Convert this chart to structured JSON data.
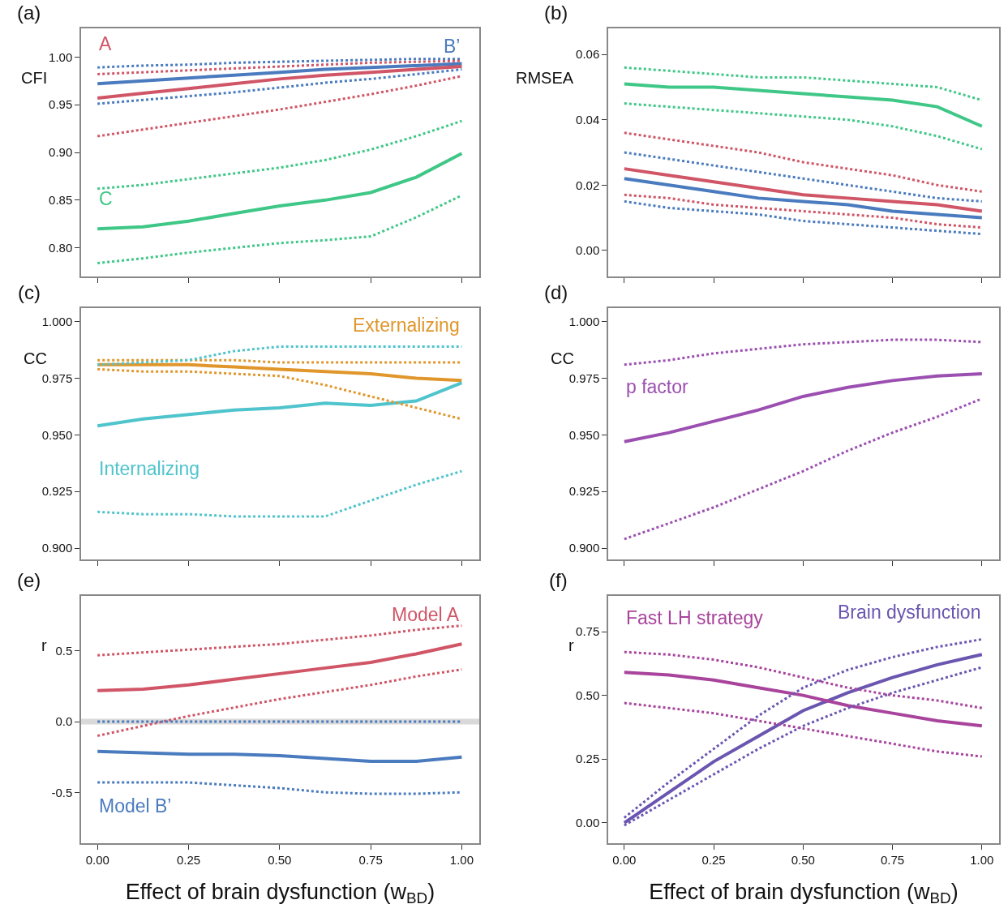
{
  "chart_data": [
    {
      "type": "line",
      "title": "(a)",
      "ylabel": "CFI",
      "x": [
        0,
        0.125,
        0.25,
        0.375,
        0.5,
        0.625,
        0.75,
        0.875,
        1
      ],
      "xlim": [
        -0.045,
        1.048
      ],
      "xticks": [
        0,
        0.25,
        0.5,
        0.75,
        1
      ],
      "ylim": [
        0.77,
        1.03
      ],
      "yticks": [
        {
          "value": 0.8,
          "label": "0.80"
        },
        {
          "value": 0.85,
          "label": "0.85"
        },
        {
          "value": 0.9,
          "label": "0.90"
        },
        {
          "value": 0.95,
          "label": "0.95"
        },
        {
          "value": 1.0,
          "label": "1.00"
        }
      ],
      "tick_labels": "y",
      "line_style": "solid",
      "series": [
        {
          "name": "B’",
          "color": "#4a7bbf",
          "values": [
            0.972,
            0.975,
            0.978,
            0.981,
            0.984,
            0.987,
            0.989,
            0.991,
            0.993
          ]
        },
        {
          "color": "#4a7bbf",
          "line_style": "dotted",
          "values": [
            0.989,
            0.991,
            0.992,
            0.994,
            0.995,
            0.996,
            0.997,
            0.998,
            0.998
          ]
        },
        {
          "color": "#4a7bbf",
          "line_style": "dotted",
          "values": [
            0.951,
            0.955,
            0.959,
            0.963,
            0.968,
            0.973,
            0.977,
            0.982,
            0.987
          ]
        },
        {
          "name": "A",
          "color": "#d05566",
          "values": [
            0.957,
            0.962,
            0.967,
            0.972,
            0.977,
            0.981,
            0.984,
            0.987,
            0.99
          ]
        },
        {
          "color": "#d05566",
          "line_style": "dotted",
          "values": [
            0.982,
            0.984,
            0.986,
            0.988,
            0.99,
            0.992,
            0.994,
            0.995,
            0.996
          ]
        },
        {
          "color": "#d05566",
          "line_style": "dotted",
          "values": [
            0.917,
            0.924,
            0.931,
            0.938,
            0.945,
            0.953,
            0.961,
            0.97,
            0.98
          ]
        },
        {
          "name": "C",
          "color": "#3fc787",
          "values": [
            0.82,
            0.822,
            0.828,
            0.836,
            0.844,
            0.85,
            0.858,
            0.874,
            0.899
          ]
        },
        {
          "color": "#3fc787",
          "line_style": "dotted",
          "values": [
            0.862,
            0.866,
            0.872,
            0.878,
            0.884,
            0.892,
            0.903,
            0.917,
            0.933
          ]
        },
        {
          "color": "#3fc787",
          "line_style": "dotted",
          "values": [
            0.784,
            0.789,
            0.795,
            0.8,
            0.805,
            0.808,
            0.812,
            0.832,
            0.855
          ]
        }
      ]
    },
    {
      "type": "line",
      "title": "(b)",
      "ylabel": "RMSEA",
      "x": [
        0,
        0.125,
        0.25,
        0.375,
        0.5,
        0.625,
        0.75,
        0.875,
        1
      ],
      "xlim": [
        -0.045,
        1.048
      ],
      "xticks": [
        0,
        0.25,
        0.5,
        0.75,
        1
      ],
      "ylim": [
        -0.008,
        0.068
      ],
      "yticks": [
        {
          "value": 0,
          "label": "0.00"
        },
        {
          "value": 0.02,
          "label": "0.02"
        },
        {
          "value": 0.04,
          "label": "0.04"
        },
        {
          "value": 0.06,
          "label": "0.06"
        }
      ],
      "tick_labels": "y",
      "line_style": "solid",
      "series": [
        {
          "color": "#3fc787",
          "values": [
            0.051,
            0.05,
            0.05,
            0.049,
            0.048,
            0.047,
            0.046,
            0.044,
            0.038
          ]
        },
        {
          "color": "#3fc787",
          "line_style": "dotted",
          "values": [
            0.056,
            0.055,
            0.054,
            0.053,
            0.053,
            0.052,
            0.051,
            0.05,
            0.046
          ]
        },
        {
          "color": "#3fc787",
          "line_style": "dotted",
          "values": [
            0.045,
            0.044,
            0.043,
            0.042,
            0.041,
            0.04,
            0.038,
            0.035,
            0.031
          ]
        },
        {
          "color": "#d05566",
          "values": [
            0.025,
            0.023,
            0.021,
            0.019,
            0.017,
            0.016,
            0.015,
            0.014,
            0.012
          ]
        },
        {
          "color": "#d05566",
          "line_style": "dotted",
          "values": [
            0.036,
            0.034,
            0.032,
            0.03,
            0.027,
            0.025,
            0.023,
            0.02,
            0.018
          ]
        },
        {
          "color": "#d05566",
          "line_style": "dotted",
          "values": [
            0.017,
            0.016,
            0.014,
            0.013,
            0.012,
            0.011,
            0.01,
            0.008,
            0.007
          ]
        },
        {
          "color": "#4a7bbf",
          "values": [
            0.022,
            0.02,
            0.018,
            0.016,
            0.015,
            0.014,
            0.012,
            0.011,
            0.01
          ]
        },
        {
          "color": "#4a7bbf",
          "line_style": "dotted",
          "values": [
            0.03,
            0.028,
            0.026,
            0.024,
            0.022,
            0.02,
            0.018,
            0.016,
            0.015
          ]
        },
        {
          "color": "#4a7bbf",
          "line_style": "dotted",
          "values": [
            0.015,
            0.013,
            0.012,
            0.011,
            0.009,
            0.008,
            0.007,
            0.006,
            0.005
          ]
        }
      ]
    },
    {
      "type": "line",
      "title": "(c)",
      "ylabel": "CC",
      "x": [
        0,
        0.125,
        0.25,
        0.375,
        0.5,
        0.625,
        0.75,
        0.875,
        1
      ],
      "xlim": [
        -0.045,
        1.048
      ],
      "xticks": [
        0,
        0.25,
        0.5,
        0.75,
        1
      ],
      "ylim": [
        0.895,
        1.006
      ],
      "yticks": [
        {
          "value": 0.9,
          "label": "0.900"
        },
        {
          "value": 0.925,
          "label": "0.925"
        },
        {
          "value": 0.95,
          "label": "0.950"
        },
        {
          "value": 0.975,
          "label": "0.975"
        },
        {
          "value": 1.0,
          "label": "1.000"
        }
      ],
      "tick_labels": "y",
      "line_style": "solid",
      "series": [
        {
          "name": "Externalizing",
          "color": "#e0962a",
          "values": [
            0.981,
            0.981,
            0.981,
            0.98,
            0.979,
            0.978,
            0.977,
            0.975,
            0.974
          ]
        },
        {
          "color": "#e0962a",
          "line_style": "dotted",
          "values": [
            0.983,
            0.983,
            0.983,
            0.983,
            0.982,
            0.982,
            0.982,
            0.982,
            0.982
          ]
        },
        {
          "color": "#e0962a",
          "line_style": "dotted",
          "values": [
            0.979,
            0.978,
            0.978,
            0.977,
            0.976,
            0.972,
            0.967,
            0.962,
            0.957
          ]
        },
        {
          "name": "Internalizing",
          "color": "#4fc4cc",
          "values": [
            0.954,
            0.957,
            0.959,
            0.961,
            0.962,
            0.964,
            0.963,
            0.965,
            0.973
          ]
        },
        {
          "color": "#4fc4cc",
          "line_style": "dotted",
          "values": [
            0.981,
            0.982,
            0.983,
            0.987,
            0.989,
            0.989,
            0.989,
            0.989,
            0.989
          ]
        },
        {
          "color": "#4fc4cc",
          "line_style": "dotted",
          "values": [
            0.916,
            0.915,
            0.915,
            0.914,
            0.914,
            0.914,
            0.921,
            0.928,
            0.934
          ]
        }
      ]
    },
    {
      "type": "line",
      "title": "(d)",
      "ylabel": "CC",
      "x": [
        0,
        0.125,
        0.25,
        0.375,
        0.5,
        0.625,
        0.75,
        0.875,
        1
      ],
      "xlim": [
        -0.045,
        1.048
      ],
      "xticks": [
        0,
        0.25,
        0.5,
        0.75,
        1
      ],
      "ylim": [
        0.895,
        1.006
      ],
      "yticks": [
        {
          "value": 0.9,
          "label": "0.900"
        },
        {
          "value": 0.925,
          "label": "0.925"
        },
        {
          "value": 0.95,
          "label": "0.950"
        },
        {
          "value": 0.975,
          "label": "0.975"
        },
        {
          "value": 1.0,
          "label": "1.000"
        }
      ],
      "tick_labels": "y",
      "line_style": "solid",
      "series": [
        {
          "name": "p factor",
          "color": "#9b4fb0",
          "values": [
            0.947,
            0.951,
            0.956,
            0.961,
            0.967,
            0.971,
            0.974,
            0.976,
            0.977
          ]
        },
        {
          "color": "#9b4fb0",
          "line_style": "dotted",
          "values": [
            0.981,
            0.983,
            0.986,
            0.988,
            0.99,
            0.991,
            0.992,
            0.992,
            0.991
          ]
        },
        {
          "color": "#9b4fb0",
          "line_style": "dotted",
          "values": [
            0.904,
            0.911,
            0.918,
            0.926,
            0.934,
            0.943,
            0.951,
            0.958,
            0.966
          ]
        }
      ]
    },
    {
      "type": "line",
      "title": "(e)",
      "ylabel": "r",
      "xlabel": "Effect of brain dysfunction (w$_{BD}$)",
      "x": [
        0,
        0.125,
        0.25,
        0.375,
        0.5,
        0.625,
        0.75,
        0.875,
        1
      ],
      "xlim": [
        -0.045,
        1.048
      ],
      "xticks": [
        {
          "value": 0,
          "label": "0.00"
        },
        {
          "value": 0.25,
          "label": "0.25"
        },
        {
          "value": 0.5,
          "label": "0.50"
        },
        {
          "value": 0.75,
          "label": "0.75"
        },
        {
          "value": 1,
          "label": "1.00"
        }
      ],
      "ylim": [
        -0.86,
        0.89
      ],
      "yticks": [
        {
          "value": -0.5,
          "label": "-0.5"
        },
        {
          "value": 0,
          "label": "0.0"
        },
        0.5
      ],
      "line_style": "solid",
      "ref_lines": [
        {
          "axis": "y",
          "value": 0,
          "color": "#d9d9d9"
        }
      ],
      "series": [
        {
          "name": "Model A",
          "color": "#d05566",
          "values": [
            0.22,
            0.23,
            0.26,
            0.3,
            0.34,
            0.38,
            0.42,
            0.48,
            0.55
          ]
        },
        {
          "color": "#d05566",
          "line_style": "dotted",
          "values": [
            0.47,
            0.49,
            0.51,
            0.53,
            0.55,
            0.58,
            0.61,
            0.65,
            0.68
          ]
        },
        {
          "color": "#d05566",
          "line_style": "dotted",
          "values": [
            -0.1,
            -0.03,
            0.04,
            0.1,
            0.16,
            0.21,
            0.26,
            0.32,
            0.37
          ]
        },
        {
          "name": "Model B’",
          "color": "#4a7bbf",
          "values": [
            -0.21,
            -0.22,
            -0.23,
            -0.23,
            -0.24,
            -0.26,
            -0.28,
            -0.28,
            -0.25
          ]
        },
        {
          "color": "#4a7bbf",
          "line_style": "dotted",
          "values": [
            0,
            0,
            0,
            0,
            0,
            0,
            0,
            0,
            0
          ]
        },
        {
          "color": "#4a7bbf",
          "line_style": "dotted",
          "values": [
            -0.43,
            -0.43,
            -0.43,
            -0.45,
            -0.47,
            -0.5,
            -0.51,
            -0.51,
            -0.5
          ]
        }
      ]
    },
    {
      "type": "line",
      "title": "(f)",
      "ylabel": "r",
      "xlabel": "Effect of brain dysfunction (w$_{BD}$)",
      "x": [
        0,
        0.125,
        0.25,
        0.375,
        0.5,
        0.625,
        0.75,
        0.875,
        1
      ],
      "xlim": [
        -0.045,
        1.048
      ],
      "xticks": [
        {
          "value": 0,
          "label": "0.00"
        },
        {
          "value": 0.25,
          "label": "0.25"
        },
        {
          "value": 0.5,
          "label": "0.50"
        },
        {
          "value": 0.75,
          "label": "0.75"
        },
        {
          "value": 1,
          "label": "1.00"
        }
      ],
      "ylim": [
        -0.08,
        0.89
      ],
      "yticks": [
        {
          "value": 0,
          "label": "0.00"
        },
        0.25,
        {
          "value": 0.5,
          "label": "0.50"
        },
        0.75
      ],
      "line_style": "solid",
      "series": [
        {
          "name": "Brain dysfunction",
          "color": "#6a55b0",
          "values": [
            0.0,
            0.12,
            0.24,
            0.34,
            0.44,
            0.51,
            0.57,
            0.62,
            0.66
          ]
        },
        {
          "color": "#6a55b0",
          "line_style": "dotted",
          "values": [
            0.02,
            0.16,
            0.29,
            0.42,
            0.53,
            0.6,
            0.65,
            0.69,
            0.72
          ]
        },
        {
          "color": "#6a55b0",
          "line_style": "dotted",
          "values": [
            -0.01,
            0.09,
            0.19,
            0.29,
            0.38,
            0.45,
            0.51,
            0.56,
            0.61
          ]
        },
        {
          "name": "Fast LH strategy",
          "color": "#a8449c",
          "values": [
            0.59,
            0.58,
            0.56,
            0.53,
            0.5,
            0.46,
            0.43,
            0.4,
            0.38
          ]
        },
        {
          "color": "#a8449c",
          "line_style": "dotted",
          "values": [
            0.67,
            0.66,
            0.64,
            0.61,
            0.57,
            0.53,
            0.5,
            0.48,
            0.45
          ]
        },
        {
          "color": "#a8449c",
          "line_style": "dotted",
          "values": [
            0.47,
            0.45,
            0.43,
            0.4,
            0.37,
            0.34,
            0.31,
            0.28,
            0.26
          ]
        }
      ]
    }
  ]
}
